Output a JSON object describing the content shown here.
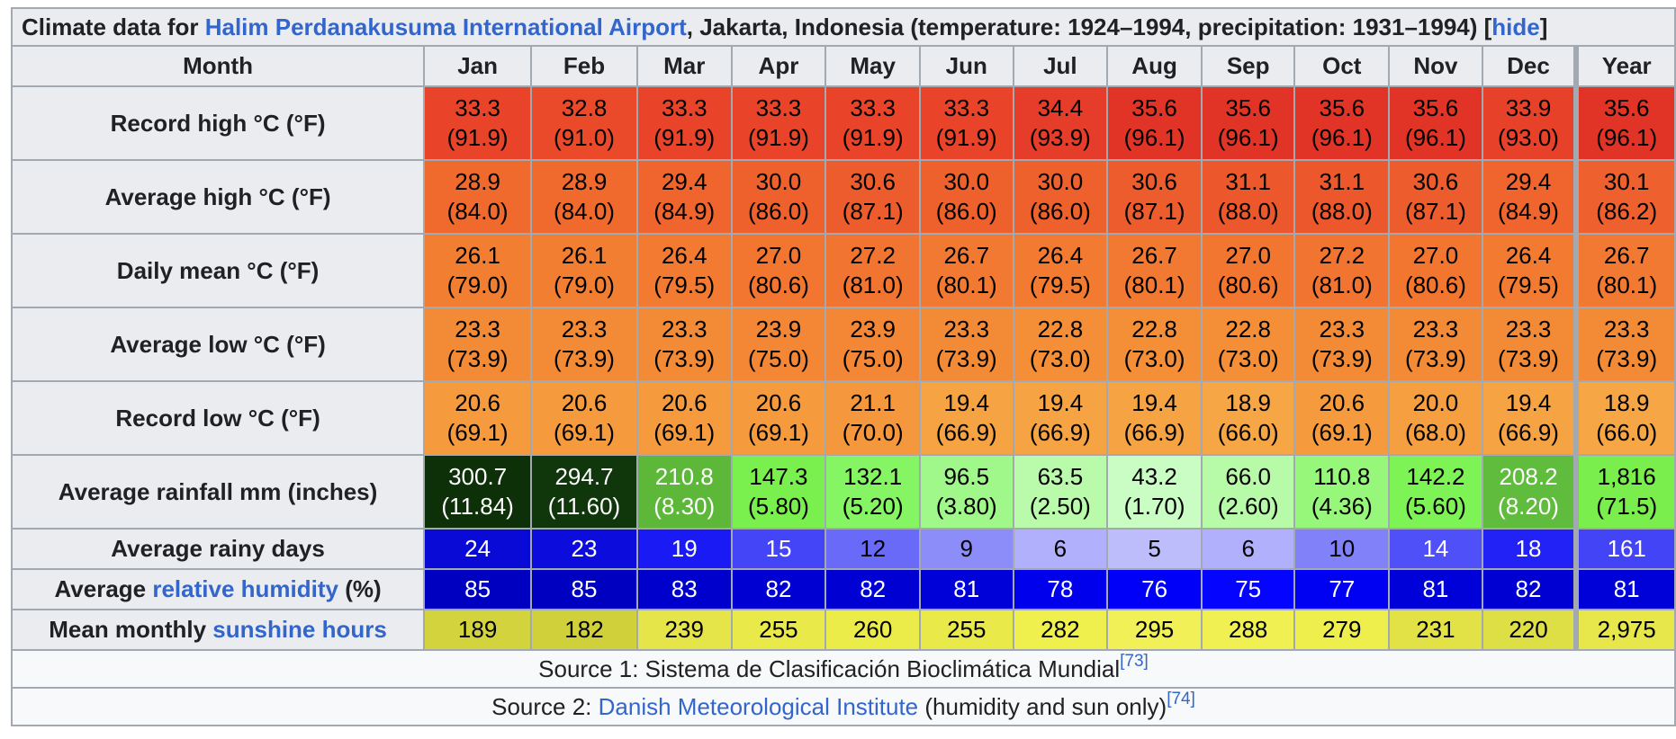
{
  "caption": {
    "prefix": "Climate data for ",
    "link": "Halim Perdanakusuma International Airport",
    "suffix": ", Jakarta, Indonesia (temperature: 1924–1994, precipitation: 1931–1994) [",
    "hide": "hide",
    "close": "]"
  },
  "header": {
    "month_label": "Month",
    "months": [
      "Jan",
      "Feb",
      "Mar",
      "Apr",
      "May",
      "Jun",
      "Jul",
      "Aug",
      "Sep",
      "Oct",
      "Nov",
      "Dec",
      "Year"
    ]
  },
  "rows": [
    {
      "label": "Record high °C (°F)",
      "cells": [
        {
          "v": "33.3",
          "s": "(91.9)",
          "bg": "#e9442a",
          "fg": "#000000"
        },
        {
          "v": "32.8",
          "s": "(91.0)",
          "bg": "#eb4a2a",
          "fg": "#000000"
        },
        {
          "v": "33.3",
          "s": "(91.9)",
          "bg": "#e9442a",
          "fg": "#000000"
        },
        {
          "v": "33.3",
          "s": "(91.9)",
          "bg": "#e9442a",
          "fg": "#000000"
        },
        {
          "v": "33.3",
          "s": "(91.9)",
          "bg": "#e9442a",
          "fg": "#000000"
        },
        {
          "v": "33.3",
          "s": "(91.9)",
          "bg": "#e9442a",
          "fg": "#000000"
        },
        {
          "v": "34.4",
          "s": "(93.9)",
          "bg": "#e53d29",
          "fg": "#000000"
        },
        {
          "v": "35.6",
          "s": "(96.1)",
          "bg": "#e23426",
          "fg": "#000000"
        },
        {
          "v": "35.6",
          "s": "(96.1)",
          "bg": "#e23426",
          "fg": "#000000"
        },
        {
          "v": "35.6",
          "s": "(96.1)",
          "bg": "#e23426",
          "fg": "#000000"
        },
        {
          "v": "35.6",
          "s": "(96.1)",
          "bg": "#e23426",
          "fg": "#000000"
        },
        {
          "v": "33.9",
          "s": "(93.0)",
          "bg": "#e7412a",
          "fg": "#000000"
        },
        {
          "v": "35.6",
          "s": "(96.1)",
          "bg": "#e23426",
          "fg": "#000000"
        }
      ]
    },
    {
      "label": "Average high °C (°F)",
      "cells": [
        {
          "v": "28.9",
          "s": "(84.0)",
          "bg": "#f06a2e",
          "fg": "#000000"
        },
        {
          "v": "28.9",
          "s": "(84.0)",
          "bg": "#f06a2e",
          "fg": "#000000"
        },
        {
          "v": "29.4",
          "s": "(84.9)",
          "bg": "#ef652d",
          "fg": "#000000"
        },
        {
          "v": "30.0",
          "s": "(86.0)",
          "bg": "#ee612d",
          "fg": "#000000"
        },
        {
          "v": "30.6",
          "s": "(87.1)",
          "bg": "#ed5c2c",
          "fg": "#000000"
        },
        {
          "v": "30.0",
          "s": "(86.0)",
          "bg": "#ee612d",
          "fg": "#000000"
        },
        {
          "v": "30.0",
          "s": "(86.0)",
          "bg": "#ee612d",
          "fg": "#000000"
        },
        {
          "v": "30.6",
          "s": "(87.1)",
          "bg": "#ed5c2c",
          "fg": "#000000"
        },
        {
          "v": "31.1",
          "s": "(88.0)",
          "bg": "#ec582b",
          "fg": "#000000"
        },
        {
          "v": "31.1",
          "s": "(88.0)",
          "bg": "#ec582b",
          "fg": "#000000"
        },
        {
          "v": "30.6",
          "s": "(87.1)",
          "bg": "#ed5c2c",
          "fg": "#000000"
        },
        {
          "v": "29.4",
          "s": "(84.9)",
          "bg": "#ef652d",
          "fg": "#000000"
        },
        {
          "v": "30.1",
          "s": "(86.2)",
          "bg": "#ee602d",
          "fg": "#000000"
        }
      ]
    },
    {
      "label": "Daily mean °C (°F)",
      "cells": [
        {
          "v": "26.1",
          "s": "(79.0)",
          "bg": "#f27e32",
          "fg": "#000000"
        },
        {
          "v": "26.1",
          "s": "(79.0)",
          "bg": "#f27e32",
          "fg": "#000000"
        },
        {
          "v": "26.4",
          "s": "(79.5)",
          "bg": "#f27b31",
          "fg": "#000000"
        },
        {
          "v": "27.0",
          "s": "(80.6)",
          "bg": "#f27630",
          "fg": "#000000"
        },
        {
          "v": "27.2",
          "s": "(81.0)",
          "bg": "#f17430",
          "fg": "#000000"
        },
        {
          "v": "26.7",
          "s": "(80.1)",
          "bg": "#f27931",
          "fg": "#000000"
        },
        {
          "v": "26.4",
          "s": "(79.5)",
          "bg": "#f27b31",
          "fg": "#000000"
        },
        {
          "v": "26.7",
          "s": "(80.1)",
          "bg": "#f27931",
          "fg": "#000000"
        },
        {
          "v": "27.0",
          "s": "(80.6)",
          "bg": "#f27630",
          "fg": "#000000"
        },
        {
          "v": "27.2",
          "s": "(81.0)",
          "bg": "#f17430",
          "fg": "#000000"
        },
        {
          "v": "27.0",
          "s": "(80.6)",
          "bg": "#f27630",
          "fg": "#000000"
        },
        {
          "v": "26.4",
          "s": "(79.5)",
          "bg": "#f27b31",
          "fg": "#000000"
        },
        {
          "v": "26.7",
          "s": "(80.1)",
          "bg": "#f27931",
          "fg": "#000000"
        }
      ]
    },
    {
      "label": "Average low °C (°F)",
      "cells": [
        {
          "v": "23.3",
          "s": "(73.9)",
          "bg": "#f38b36",
          "fg": "#000000"
        },
        {
          "v": "23.3",
          "s": "(73.9)",
          "bg": "#f38b36",
          "fg": "#000000"
        },
        {
          "v": "23.3",
          "s": "(73.9)",
          "bg": "#f38b36",
          "fg": "#000000"
        },
        {
          "v": "23.9",
          "s": "(75.0)",
          "bg": "#f38735",
          "fg": "#000000"
        },
        {
          "v": "23.9",
          "s": "(75.0)",
          "bg": "#f38735",
          "fg": "#000000"
        },
        {
          "v": "23.3",
          "s": "(73.9)",
          "bg": "#f38b36",
          "fg": "#000000"
        },
        {
          "v": "22.8",
          "s": "(73.0)",
          "bg": "#f48f38",
          "fg": "#000000"
        },
        {
          "v": "22.8",
          "s": "(73.0)",
          "bg": "#f48f38",
          "fg": "#000000"
        },
        {
          "v": "22.8",
          "s": "(73.0)",
          "bg": "#f48f38",
          "fg": "#000000"
        },
        {
          "v": "23.3",
          "s": "(73.9)",
          "bg": "#f38b36",
          "fg": "#000000"
        },
        {
          "v": "23.3",
          "s": "(73.9)",
          "bg": "#f38b36",
          "fg": "#000000"
        },
        {
          "v": "23.3",
          "s": "(73.9)",
          "bg": "#f38b36",
          "fg": "#000000"
        },
        {
          "v": "23.3",
          "s": "(73.9)",
          "bg": "#f38b36",
          "fg": "#000000"
        }
      ]
    },
    {
      "label": "Record low °C (°F)",
      "cells": [
        {
          "v": "20.6",
          "s": "(69.1)",
          "bg": "#f59b3e",
          "fg": "#000000"
        },
        {
          "v": "20.6",
          "s": "(69.1)",
          "bg": "#f59b3e",
          "fg": "#000000"
        },
        {
          "v": "20.6",
          "s": "(69.1)",
          "bg": "#f59b3e",
          "fg": "#000000"
        },
        {
          "v": "20.6",
          "s": "(69.1)",
          "bg": "#f59b3e",
          "fg": "#000000"
        },
        {
          "v": "21.1",
          "s": "(70.0)",
          "bg": "#f5983d",
          "fg": "#000000"
        },
        {
          "v": "19.4",
          "s": "(66.9)",
          "bg": "#f6a343",
          "fg": "#000000"
        },
        {
          "v": "19.4",
          "s": "(66.9)",
          "bg": "#f6a343",
          "fg": "#000000"
        },
        {
          "v": "19.4",
          "s": "(66.9)",
          "bg": "#f6a343",
          "fg": "#000000"
        },
        {
          "v": "18.9",
          "s": "(66.0)",
          "bg": "#f6a645",
          "fg": "#000000"
        },
        {
          "v": "20.6",
          "s": "(69.1)",
          "bg": "#f59b3e",
          "fg": "#000000"
        },
        {
          "v": "20.0",
          "s": "(68.0)",
          "bg": "#f59f40",
          "fg": "#000000"
        },
        {
          "v": "19.4",
          "s": "(66.9)",
          "bg": "#f6a343",
          "fg": "#000000"
        },
        {
          "v": "18.9",
          "s": "(66.0)",
          "bg": "#f6a645",
          "fg": "#000000"
        }
      ]
    },
    {
      "label": "Average rainfall mm (inches)",
      "cells": [
        {
          "v": "300.7",
          "s": "(11.84)",
          "bg": "#0d3009",
          "fg": "#ffffff"
        },
        {
          "v": "294.7",
          "s": "(11.60)",
          "bg": "#10360b",
          "fg": "#ffffff"
        },
        {
          "v": "210.8",
          "s": "(8.30)",
          "bg": "#5db83a",
          "fg": "#ffffff"
        },
        {
          "v": "147.3",
          "s": "(5.80)",
          "bg": "#7af04e",
          "fg": "#000000"
        },
        {
          "v": "132.1",
          "s": "(5.20)",
          "bg": "#86f563",
          "fg": "#000000"
        },
        {
          "v": "96.5",
          "s": "(3.80)",
          "bg": "#a1f88a",
          "fg": "#000000"
        },
        {
          "v": "63.5",
          "s": "(2.50)",
          "bg": "#b9fbab",
          "fg": "#000000"
        },
        {
          "v": "43.2",
          "s": "(1.70)",
          "bg": "#cafdc3",
          "fg": "#000000"
        },
        {
          "v": "66.0",
          "s": "(2.60)",
          "bg": "#b7fba8",
          "fg": "#000000"
        },
        {
          "v": "110.8",
          "s": "(4.36)",
          "bg": "#96f77a",
          "fg": "#000000"
        },
        {
          "v": "142.2",
          "s": "(5.60)",
          "bg": "#7ef355",
          "fg": "#000000"
        },
        {
          "v": "208.2",
          "s": "(8.20)",
          "bg": "#5fbc3c",
          "fg": "#ffffff"
        },
        {
          "v": "1,816",
          "s": "(71.5)",
          "bg": "#79ee4d",
          "fg": "#000000"
        }
      ]
    },
    {
      "label": "Average rainy days",
      "cells": [
        {
          "v": "24",
          "bg": "#0a0ad6",
          "fg": "#ffffff"
        },
        {
          "v": "23",
          "bg": "#0c0cdc",
          "fg": "#ffffff"
        },
        {
          "v": "19",
          "bg": "#1a1af5",
          "fg": "#ffffff"
        },
        {
          "v": "15",
          "bg": "#4545f8",
          "fg": "#ffffff"
        },
        {
          "v": "12",
          "bg": "#6a6af9",
          "fg": "#000000"
        },
        {
          "v": "9",
          "bg": "#8d8dfa",
          "fg": "#000000"
        },
        {
          "v": "6",
          "bg": "#b0b0fc",
          "fg": "#000000"
        },
        {
          "v": "5",
          "bg": "#bdbdfc",
          "fg": "#000000"
        },
        {
          "v": "6",
          "bg": "#b0b0fc",
          "fg": "#000000"
        },
        {
          "v": "10",
          "bg": "#8181fa",
          "fg": "#000000"
        },
        {
          "v": "14",
          "bg": "#5050f8",
          "fg": "#ffffff"
        },
        {
          "v": "18",
          "bg": "#2222f6",
          "fg": "#ffffff"
        },
        {
          "v": "161",
          "bg": "#4444f7",
          "fg": "#ffffff"
        }
      ]
    },
    {
      "label_prefix": "Average ",
      "label_link": "relative humidity",
      "label_suffix": " (%)",
      "cells": [
        {
          "v": "85",
          "bg": "#0000c0",
          "fg": "#ffffff"
        },
        {
          "v": "85",
          "bg": "#0000c0",
          "fg": "#ffffff"
        },
        {
          "v": "83",
          "bg": "#0000cc",
          "fg": "#ffffff"
        },
        {
          "v": "82",
          "bg": "#0000d2",
          "fg": "#ffffff"
        },
        {
          "v": "82",
          "bg": "#0000d2",
          "fg": "#ffffff"
        },
        {
          "v": "81",
          "bg": "#0000d9",
          "fg": "#ffffff"
        },
        {
          "v": "78",
          "bg": "#0000ec",
          "fg": "#ffffff"
        },
        {
          "v": "76",
          "bg": "#0000f8",
          "fg": "#ffffff"
        },
        {
          "v": "75",
          "bg": "#0505ff",
          "fg": "#ffffff"
        },
        {
          "v": "77",
          "bg": "#0000f2",
          "fg": "#ffffff"
        },
        {
          "v": "81",
          "bg": "#0000d9",
          "fg": "#ffffff"
        },
        {
          "v": "82",
          "bg": "#0000d2",
          "fg": "#ffffff"
        },
        {
          "v": "81",
          "bg": "#0000d9",
          "fg": "#ffffff"
        }
      ]
    },
    {
      "label_prefix": "Mean monthly ",
      "label_link": "sunshine hours",
      "label_suffix": "",
      "cells": [
        {
          "v": "189",
          "bg": "#d3d33e",
          "fg": "#000000"
        },
        {
          "v": "182",
          "bg": "#d0d03a",
          "fg": "#000000"
        },
        {
          "v": "239",
          "bg": "#e5e54a",
          "fg": "#000000"
        },
        {
          "v": "255",
          "bg": "#e9e94a",
          "fg": "#000000"
        },
        {
          "v": "260",
          "bg": "#ebeb49",
          "fg": "#000000"
        },
        {
          "v": "255",
          "bg": "#e9e94a",
          "fg": "#000000"
        },
        {
          "v": "282",
          "bg": "#efef4d",
          "fg": "#000000"
        },
        {
          "v": "295",
          "bg": "#f1f157",
          "fg": "#000000"
        },
        {
          "v": "288",
          "bg": "#f0f052",
          "fg": "#000000"
        },
        {
          "v": "279",
          "bg": "#eeee4c",
          "fg": "#000000"
        },
        {
          "v": "231",
          "bg": "#e2e247",
          "fg": "#000000"
        },
        {
          "v": "220",
          "bg": "#dede45",
          "fg": "#000000"
        },
        {
          "v": "2,975",
          "bg": "#e7e74b",
          "fg": "#000000"
        }
      ]
    }
  ],
  "sources": {
    "source1_text": "Source 1: Sistema de Clasificación Bioclimática Mundial",
    "source1_ref": "[73]",
    "source2_prefix": "Source 2: ",
    "source2_link": "Danish Meteorological Institute",
    "source2_suffix": " (humidity and sun only)",
    "source2_ref": "[74]"
  }
}
